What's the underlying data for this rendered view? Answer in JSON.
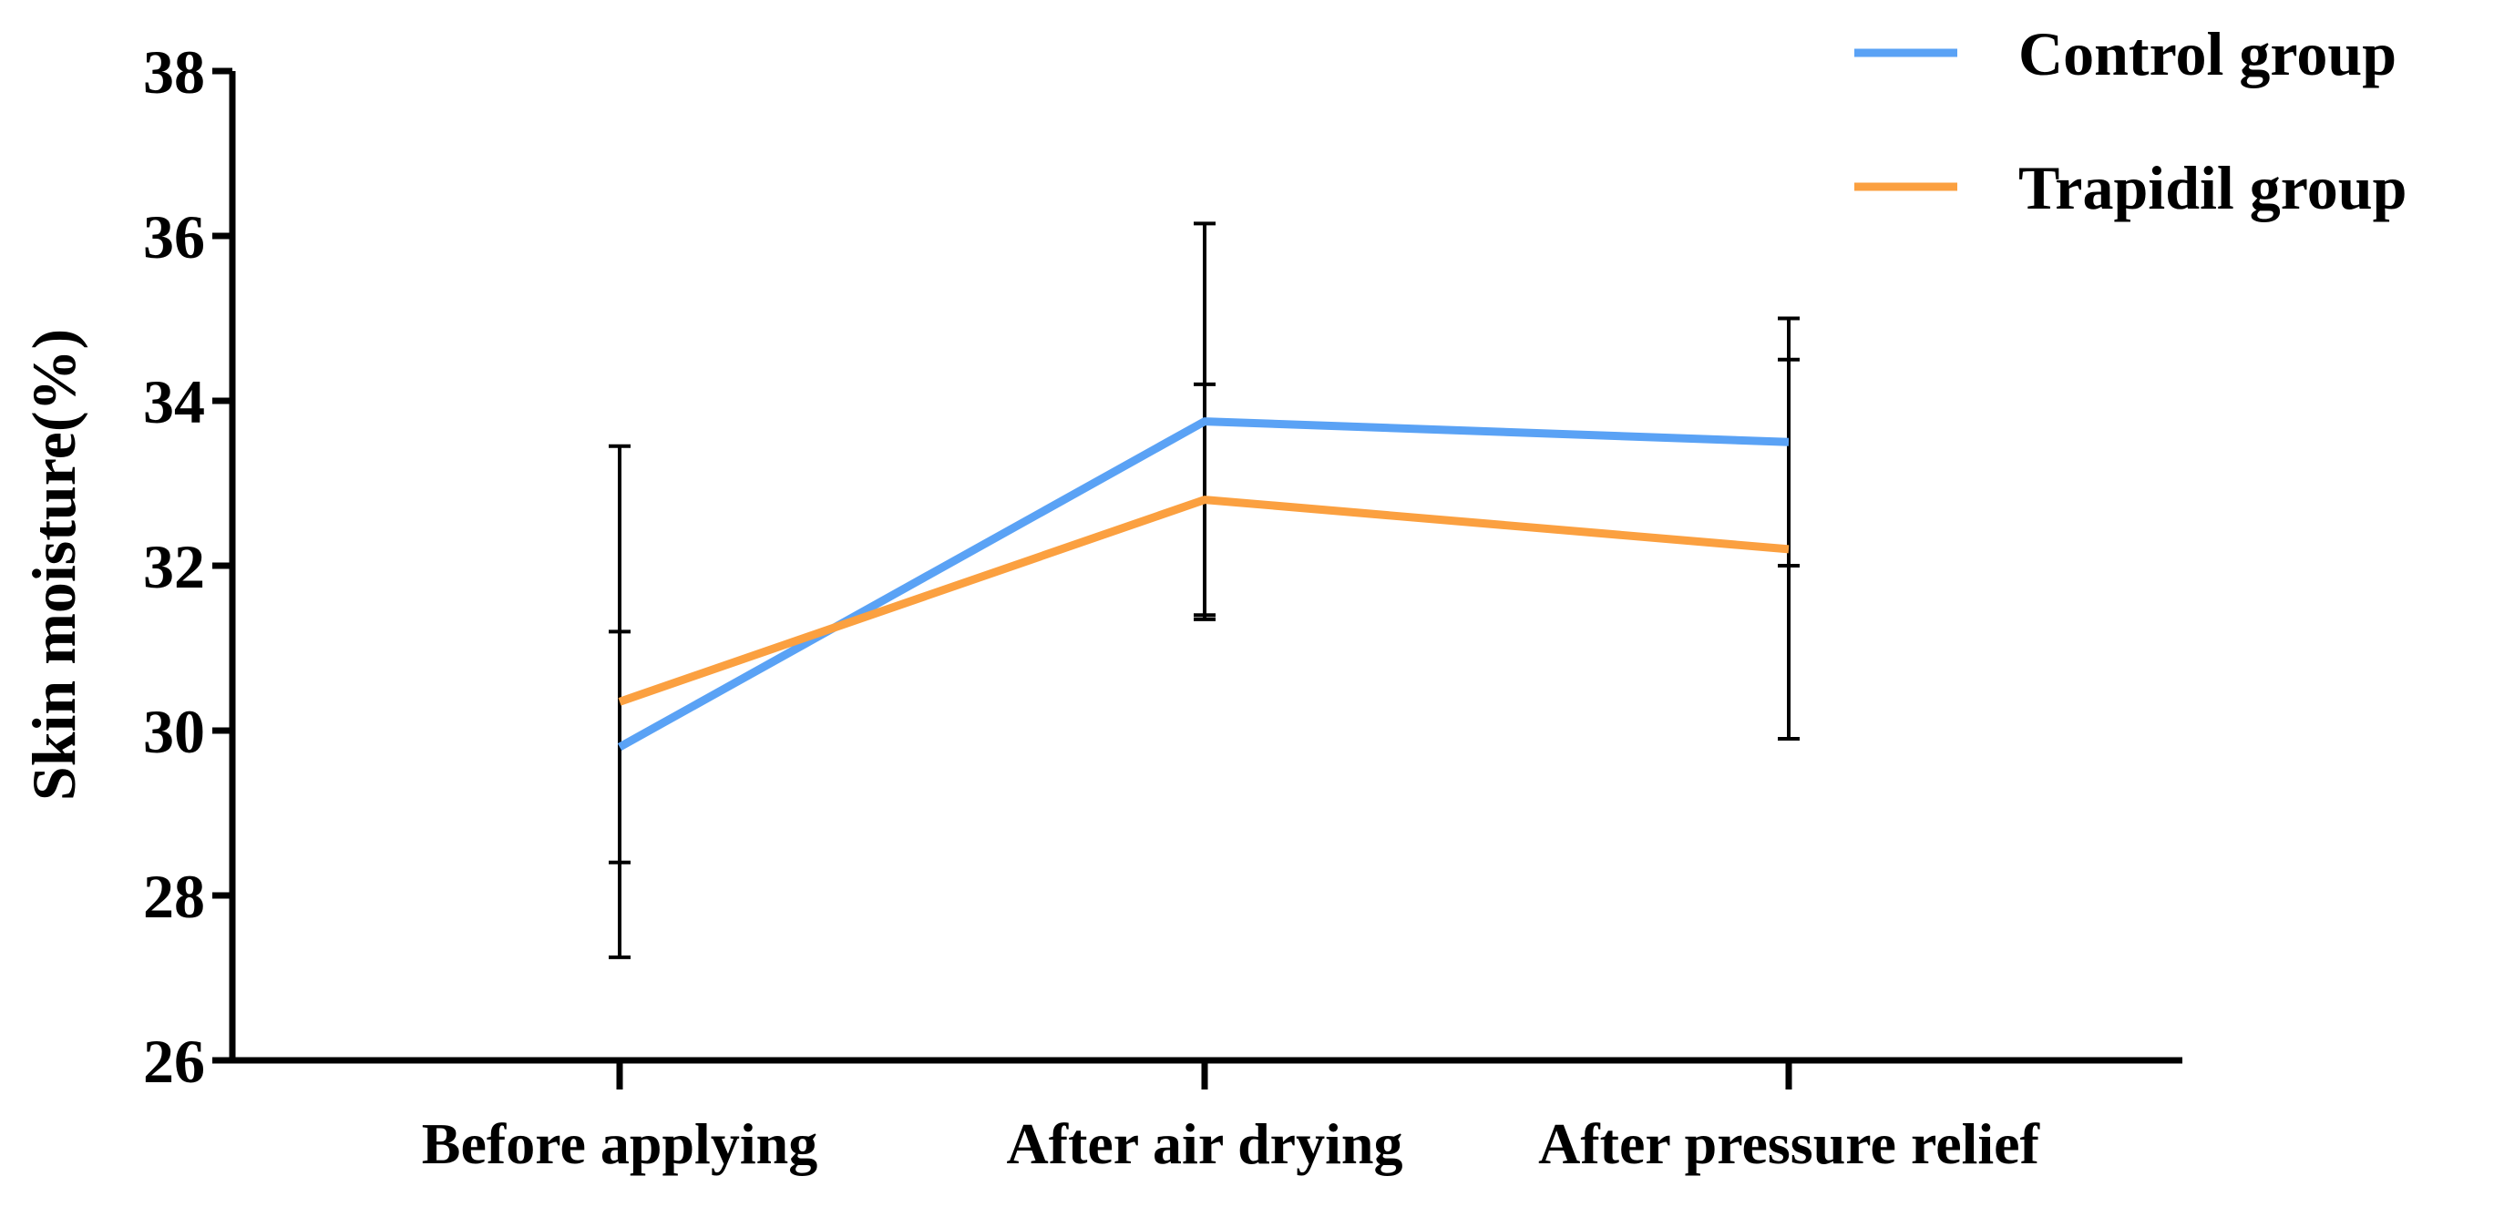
{
  "chart_data": {
    "type": "line",
    "title": "",
    "xlabel": "",
    "ylabel": "Skin moisture(%)",
    "categories": [
      "Before applying",
      "After air drying",
      "After pressure relief"
    ],
    "ylim": [
      26,
      38
    ],
    "yticks": [
      26,
      28,
      30,
      32,
      34,
      36,
      38
    ],
    "legend_position": "top-right",
    "series": [
      {
        "name": "Control group",
        "color": "#5aa2f5",
        "values": [
          29.8,
          33.75,
          33.5
        ],
        "error": [
          1.4,
          2.4,
          1.5
        ]
      },
      {
        "name": "Trapidil group",
        "color": "#fba040",
        "values": [
          30.35,
          32.8,
          32.2
        ],
        "error": [
          3.1,
          1.4,
          2.3
        ]
      }
    ]
  }
}
